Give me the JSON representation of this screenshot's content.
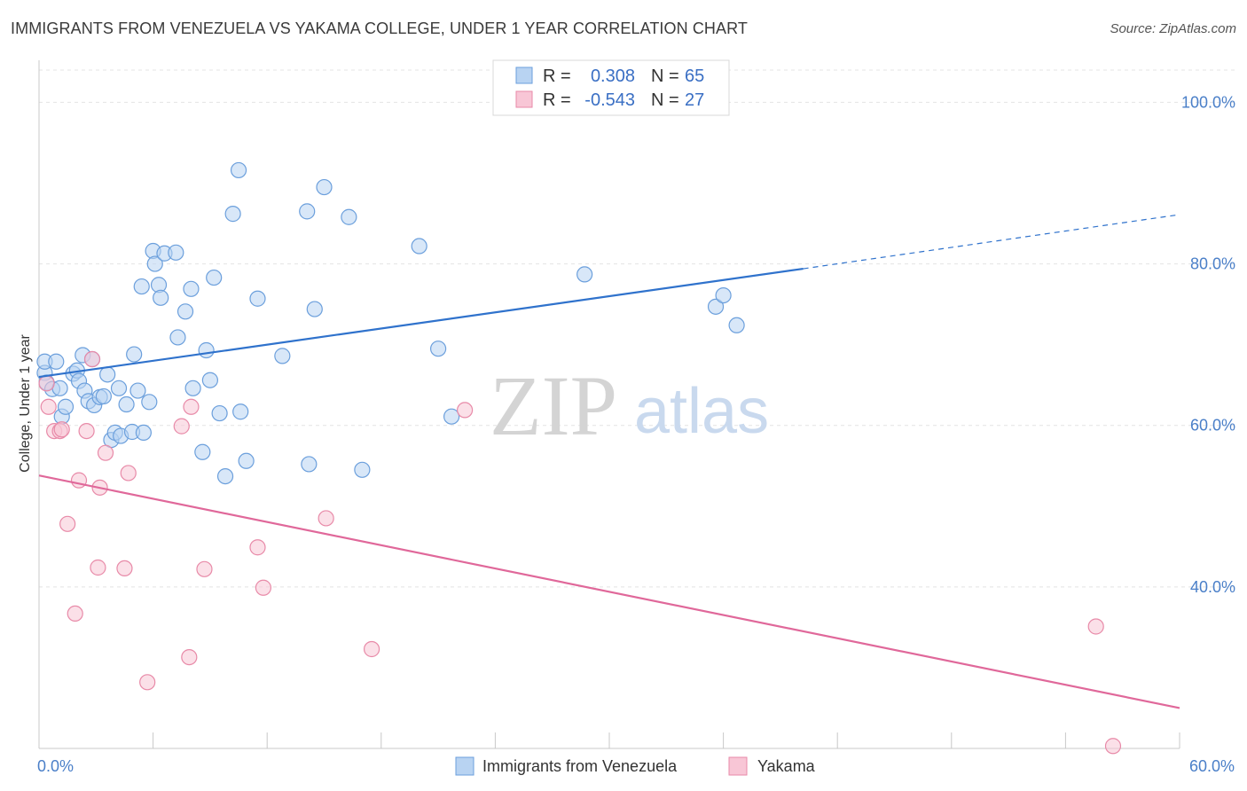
{
  "title": "IMMIGRANTS FROM VENEZUELA VS YAKAMA COLLEGE, UNDER 1 YEAR CORRELATION CHART",
  "source": "Source: ZipAtlas.com",
  "colors": {
    "blue": "#6b9fdc",
    "blue_fill": "#b8d3f2",
    "blue_line": "#2f72cc",
    "pink": "#e88aa8",
    "pink_fill": "#f8c6d6",
    "pink_line": "#e0689a"
  },
  "watermark": {
    "zip": "ZIP",
    "atlas": "atlas"
  },
  "legend": {
    "rows": [
      {
        "r_label": "R =",
        "r_value": "0.308",
        "n_label": "N =",
        "n_value": "65"
      },
      {
        "r_label": "R =",
        "r_value": "-0.543",
        "n_label": "N =",
        "n_value": "27"
      }
    ]
  },
  "bottom_legend": [
    "Immigrants from Venezuela",
    "Yakama"
  ],
  "chart_data": {
    "type": "scatter",
    "title": "IMMIGRANTS FROM VENEZUELA VS YAKAMA COLLEGE, UNDER 1 YEAR CORRELATION CHART",
    "xlabel": "",
    "ylabel": "College, Under 1 year",
    "xlim": [
      0,
      60
    ],
    "ylim": [
      20,
      104
    ],
    "x_tick_labels": [
      "0.0%",
      "60.0%"
    ],
    "y_ticks": [
      40,
      60,
      80,
      100
    ],
    "y_tick_labels": [
      "40.0%",
      "60.0%",
      "80.0%",
      "100.0%"
    ],
    "series": [
      {
        "name": "Immigrants from Venezuela",
        "R": 0.308,
        "N": 65,
        "trend": {
          "x0": 0,
          "y0": 66.0,
          "x1": 40.2,
          "y1": 79.4,
          "dash_to_x": 60,
          "dash_to_y": 86.1
        },
        "points": [
          [
            0.3,
            66.5
          ],
          [
            0.4,
            65.3
          ],
          [
            0.3,
            67.9
          ],
          [
            0.7,
            64.5
          ],
          [
            0.9,
            67.9
          ],
          [
            1.1,
            64.6
          ],
          [
            1.2,
            61.1
          ],
          [
            1.4,
            62.3
          ],
          [
            1.8,
            66.4
          ],
          [
            2.0,
            66.8
          ],
          [
            2.1,
            65.5
          ],
          [
            2.3,
            68.7
          ],
          [
            2.4,
            64.3
          ],
          [
            2.6,
            63.0
          ],
          [
            2.8,
            68.2
          ],
          [
            2.9,
            62.5
          ],
          [
            3.2,
            63.5
          ],
          [
            3.4,
            63.6
          ],
          [
            3.6,
            66.3
          ],
          [
            3.8,
            58.2
          ],
          [
            4.0,
            59.1
          ],
          [
            4.2,
            64.6
          ],
          [
            4.3,
            58.7
          ],
          [
            4.6,
            62.6
          ],
          [
            4.9,
            59.2
          ],
          [
            5.0,
            68.8
          ],
          [
            5.2,
            64.3
          ],
          [
            5.4,
            77.2
          ],
          [
            5.5,
            59.1
          ],
          [
            5.8,
            62.9
          ],
          [
            6.0,
            81.6
          ],
          [
            6.1,
            80.0
          ],
          [
            6.3,
            77.4
          ],
          [
            6.4,
            75.8
          ],
          [
            6.6,
            81.3
          ],
          [
            7.2,
            81.4
          ],
          [
            7.3,
            70.9
          ],
          [
            7.7,
            74.1
          ],
          [
            8.0,
            76.9
          ],
          [
            8.1,
            64.6
          ],
          [
            8.6,
            56.7
          ],
          [
            8.8,
            69.3
          ],
          [
            9.0,
            65.6
          ],
          [
            9.2,
            78.3
          ],
          [
            9.5,
            61.5
          ],
          [
            9.8,
            53.7
          ],
          [
            10.2,
            86.2
          ],
          [
            10.5,
            91.6
          ],
          [
            10.6,
            61.7
          ],
          [
            10.9,
            55.6
          ],
          [
            11.5,
            75.7
          ],
          [
            12.8,
            68.6
          ],
          [
            14.1,
            86.5
          ],
          [
            14.2,
            55.2
          ],
          [
            14.5,
            74.4
          ],
          [
            15.0,
            89.5
          ],
          [
            16.3,
            85.8
          ],
          [
            17.0,
            54.5
          ],
          [
            20.0,
            82.2
          ],
          [
            21.0,
            69.5
          ],
          [
            21.7,
            61.1
          ],
          [
            28.7,
            78.7
          ],
          [
            35.6,
            74.7
          ],
          [
            36.0,
            76.1
          ],
          [
            36.7,
            72.4
          ]
        ]
      },
      {
        "name": "Yakama",
        "R": -0.543,
        "N": 27,
        "trend": {
          "x0": 0,
          "y0": 53.8,
          "x1": 60,
          "y1": 25.0
        },
        "points": [
          [
            0.4,
            65.2
          ],
          [
            0.5,
            62.3
          ],
          [
            0.8,
            59.3
          ],
          [
            1.1,
            59.3
          ],
          [
            1.2,
            59.5
          ],
          [
            1.5,
            47.8
          ],
          [
            1.9,
            36.7
          ],
          [
            2.1,
            53.2
          ],
          [
            2.5,
            59.3
          ],
          [
            2.8,
            68.2
          ],
          [
            3.1,
            42.4
          ],
          [
            3.2,
            52.3
          ],
          [
            3.5,
            56.6
          ],
          [
            4.5,
            42.3
          ],
          [
            4.7,
            54.1
          ],
          [
            5.7,
            28.2
          ],
          [
            7.5,
            59.9
          ],
          [
            7.9,
            31.3
          ],
          [
            8.0,
            62.3
          ],
          [
            8.7,
            42.2
          ],
          [
            11.5,
            44.9
          ],
          [
            11.8,
            39.9
          ],
          [
            15.1,
            48.5
          ],
          [
            17.5,
            32.3
          ],
          [
            22.4,
            61.9
          ],
          [
            55.6,
            35.1
          ],
          [
            56.5,
            20.3
          ]
        ]
      }
    ]
  }
}
